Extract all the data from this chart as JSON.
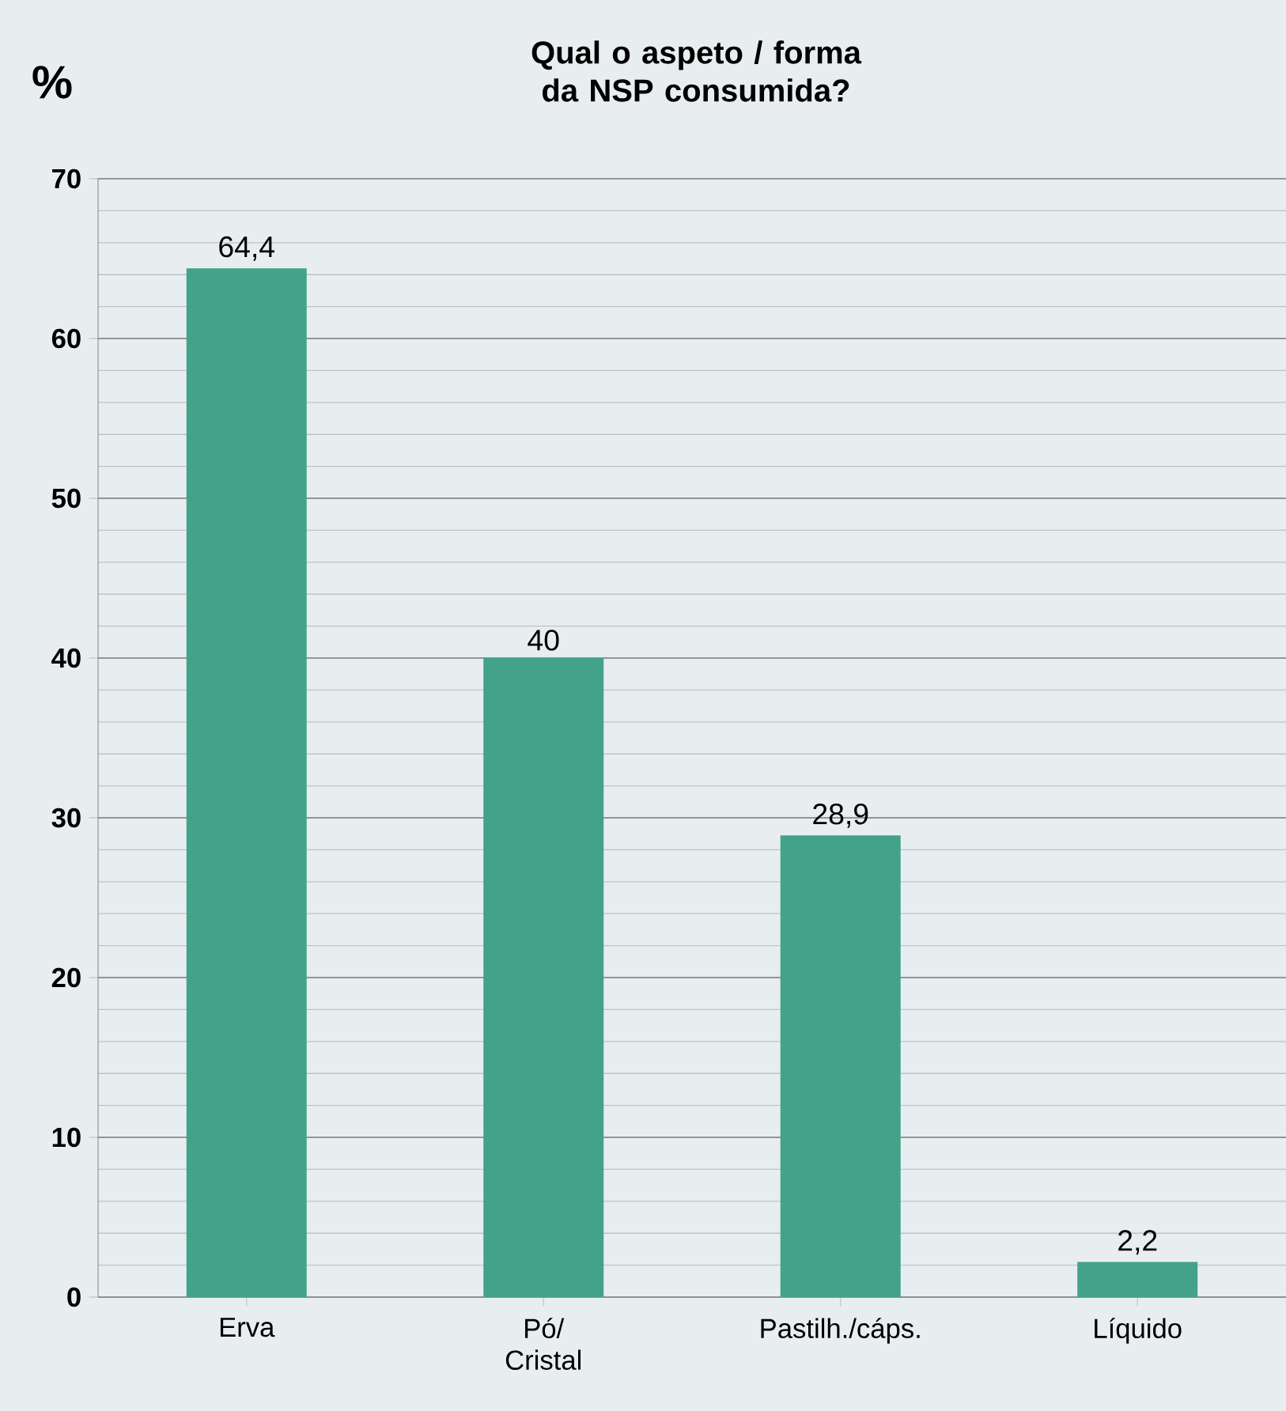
{
  "chart_data": {
    "type": "bar",
    "title": "Qual o aspeto / forma da NSP consumida?",
    "ylabel": "%",
    "categories": [
      "Erva",
      "Pó/ Cristal",
      "Pastilh./cáps.",
      "Líquido"
    ],
    "values": [
      64.4,
      40,
      28.9,
      2.2
    ],
    "value_labels": [
      "64,4",
      "40",
      "28,9",
      "2,2"
    ],
    "color": "#42a38a",
    "ylim": [
      0,
      70
    ],
    "yticks": [
      0,
      10,
      20,
      30,
      40,
      50,
      60,
      70
    ],
    "grid": "y"
  }
}
